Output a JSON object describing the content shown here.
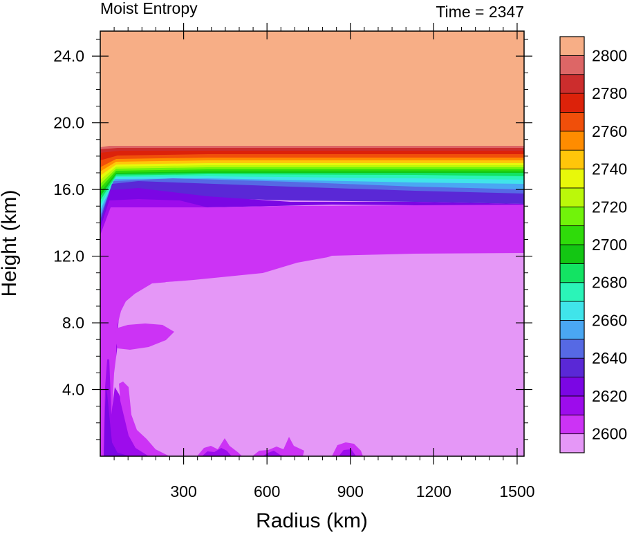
{
  "chart_data": {
    "type": "filled-contour",
    "title_left": "Moist Entropy",
    "title_right": "Time = 2347",
    "xlabel": "Radius (km)",
    "ylabel": "Height (km)",
    "xlim": [
      0,
      1525
    ],
    "ylim": [
      0,
      25.5
    ],
    "xticks": [
      300,
      600,
      900,
      1200,
      1500
    ],
    "xtick_labels": [
      "300",
      "600",
      "900",
      "1200",
      "1500"
    ],
    "yticks": [
      4,
      8,
      12,
      16,
      20,
      24
    ],
    "ytick_labels": [
      "4.0",
      "8.0",
      "12.0",
      "16.0",
      "20.0",
      "24.0"
    ],
    "colorbar": {
      "levels": [
        2600,
        2610,
        2620,
        2630,
        2640,
        2650,
        2660,
        2670,
        2680,
        2690,
        2700,
        2710,
        2720,
        2730,
        2740,
        2750,
        2760,
        2770,
        2780,
        2790,
        2800
      ],
      "labels": [
        "2600",
        "2620",
        "2640",
        "2660",
        "2680",
        "2700",
        "2720",
        "2740",
        "2760",
        "2780",
        "2800"
      ],
      "colors": [
        "#e597f7",
        "#cc33f5",
        "#9d0cec",
        "#7b06e4",
        "#5a28d6",
        "#5669e4",
        "#4aa7f3",
        "#40e4ea",
        "#2bf4b8",
        "#13e363",
        "#13c613",
        "#2fdb0a",
        "#71f30a",
        "#bbf80a",
        "#e8f80a",
        "#ffc60a",
        "#ff8c00",
        "#f04f0a",
        "#dc220a",
        "#cc2d2d",
        "#dd6666",
        "#f7ae86"
      ]
    },
    "regions": {
      "upper_layer_value": "2800+",
      "surface_layer_value": "2600",
      "tropopause_height_km": [
        14.5,
        18.7
      ]
    },
    "grid": false,
    "legend": "colorbar-right"
  }
}
